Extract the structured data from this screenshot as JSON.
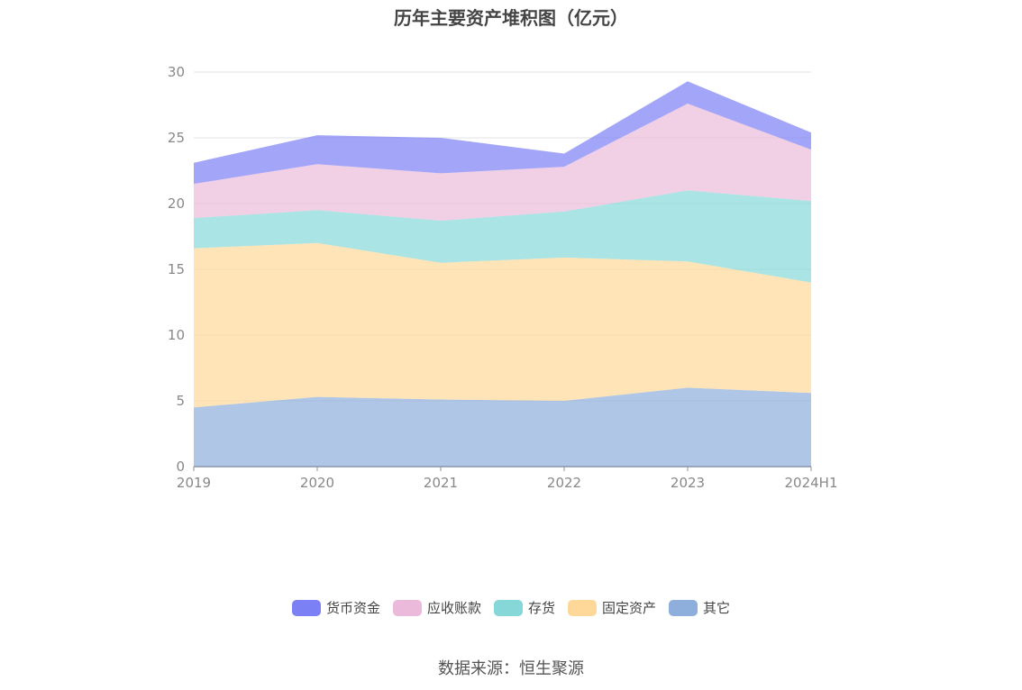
{
  "chart_data": {
    "type": "area",
    "title": "历年主要资产堆积图（亿元）",
    "stacked": true,
    "x": [
      "2019",
      "2020",
      "2021",
      "2022",
      "2023",
      "2024H1"
    ],
    "ylim": [
      0,
      30
    ],
    "yticks": [
      0,
      5,
      10,
      15,
      20,
      25,
      30
    ],
    "grid": true,
    "legend_position": "bottom",
    "series": [
      {
        "name": "其它",
        "color": "#8eaedc",
        "values": [
          4.5,
          5.3,
          5.1,
          5.0,
          6.0,
          5.6
        ]
      },
      {
        "name": "固定资产",
        "color": "#fdd899",
        "values": [
          12.1,
          11.7,
          10.4,
          10.9,
          9.6,
          8.4
        ]
      },
      {
        "name": "存货",
        "color": "#86d8d8",
        "values": [
          2.3,
          2.5,
          3.2,
          3.5,
          5.4,
          6.2
        ]
      },
      {
        "name": "应收账款",
        "color": "#ebbada",
        "values": [
          2.6,
          3.5,
          3.6,
          3.4,
          6.6,
          3.9
        ]
      },
      {
        "name": "货币资金",
        "color": "#7c80f5",
        "values": [
          1.6,
          2.2,
          2.7,
          1.0,
          1.7,
          1.3
        ]
      }
    ]
  },
  "legend_order": [
    "货币资金",
    "应收账款",
    "存货",
    "固定资产",
    "其它"
  ],
  "source": "数据来源：恒生聚源"
}
